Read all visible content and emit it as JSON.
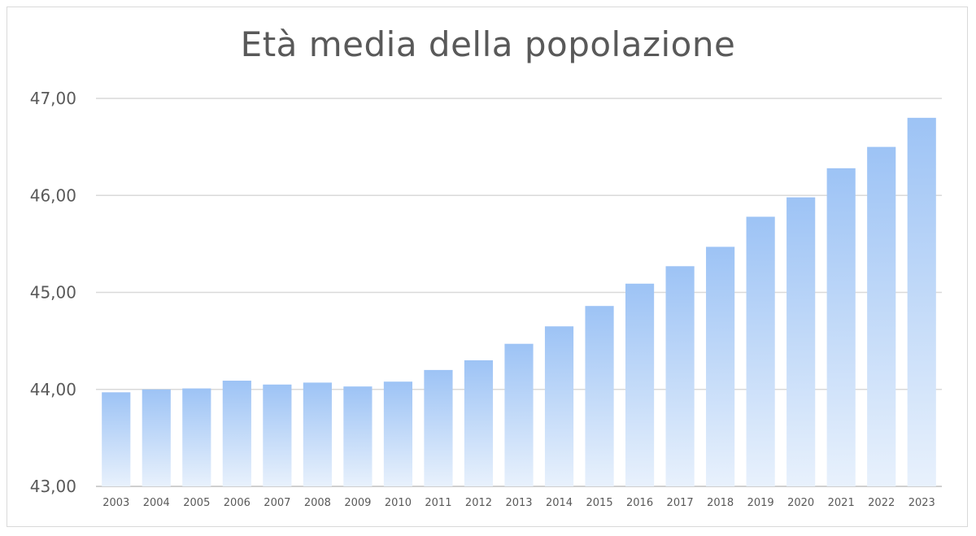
{
  "chart_data": {
    "type": "bar",
    "title": "Età media della popolazione",
    "xlabel": "",
    "ylabel": "",
    "ylim": [
      43,
      47
    ],
    "yticks": [
      "43,00",
      "44,00",
      "45,00",
      "46,00",
      "47,00"
    ],
    "grid": true,
    "legend": "none",
    "bar_color_top": "#9dc3f5",
    "bar_color_bottom": "#e8f1fc",
    "categories": [
      "2003",
      "2004",
      "2005",
      "2006",
      "2007",
      "2008",
      "2009",
      "2010",
      "2011",
      "2012",
      "2013",
      "2014",
      "2015",
      "2016",
      "2017",
      "2018",
      "2019",
      "2020",
      "2021",
      "2022",
      "2023"
    ],
    "values": [
      43.97,
      44.0,
      44.01,
      44.09,
      44.05,
      44.07,
      44.03,
      44.08,
      44.2,
      44.3,
      44.47,
      44.65,
      44.86,
      45.09,
      45.27,
      45.47,
      45.78,
      45.98,
      46.28,
      46.5,
      46.8
    ]
  }
}
